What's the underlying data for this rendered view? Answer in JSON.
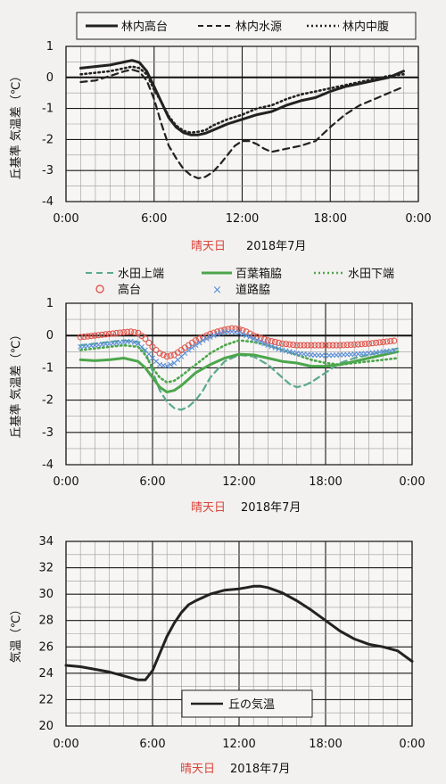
{
  "charts": [
    {
      "chart_data": {
        "type": "line",
        "xlabel_parts": [
          "晴天日",
          "2018年7月"
        ],
        "ylabel": "丘基準 気温差（℃）",
        "xlim": [
          0,
          24
        ],
        "ylim": [
          -4,
          1
        ],
        "xticks": [
          0,
          6,
          12,
          18,
          24
        ],
        "xtick_labels": [
          "0:00",
          "6:00",
          "12:00",
          "18:00",
          "0:00"
        ],
        "yticks": [
          1,
          0,
          -1,
          -2,
          -3,
          -4
        ],
        "ytick_labels": [
          "1",
          "0",
          "-1",
          "-2",
          "-3",
          "-4"
        ],
        "zero_line": true,
        "legend_position": "top",
        "series": [
          {
            "name": "林内高台",
            "style": "solid",
            "color": "#222222",
            "x": [
              1,
              2,
              3,
              4,
              4.5,
              5,
              5.5,
              6,
              6.5,
              7,
              7.5,
              8,
              8.5,
              9,
              9.5,
              10,
              11,
              12,
              13,
              14,
              15,
              16,
              17,
              18,
              19,
              20,
              21,
              22,
              23
            ],
            "y": [
              0.3,
              0.35,
              0.4,
              0.5,
              0.55,
              0.48,
              0.2,
              -0.3,
              -0.8,
              -1.3,
              -1.6,
              -1.78,
              -1.85,
              -1.85,
              -1.8,
              -1.7,
              -1.5,
              -1.35,
              -1.2,
              -1.1,
              -0.9,
              -0.75,
              -0.65,
              -0.45,
              -0.3,
              -0.2,
              -0.1,
              0.0,
              0.2
            ]
          },
          {
            "name": "林内水源",
            "style": "dashed",
            "color": "#222222",
            "x": [
              1,
              2,
              3,
              4,
              4.5,
              5,
              5.5,
              6,
              6.5,
              7,
              7.5,
              8,
              8.5,
              9,
              9.5,
              10,
              10.5,
              11,
              11.5,
              12,
              12.5,
              13,
              13.5,
              14,
              15,
              16,
              17,
              18,
              19,
              20,
              21,
              22,
              23
            ],
            "y": [
              -0.15,
              -0.1,
              0.05,
              0.2,
              0.25,
              0.18,
              -0.1,
              -0.7,
              -1.5,
              -2.2,
              -2.6,
              -2.95,
              -3.15,
              -3.25,
              -3.2,
              -3.05,
              -2.8,
              -2.5,
              -2.2,
              -2.05,
              -2.05,
              -2.15,
              -2.3,
              -2.4,
              -2.3,
              -2.2,
              -2.05,
              -1.6,
              -1.2,
              -0.9,
              -0.7,
              -0.5,
              -0.3
            ]
          },
          {
            "name": "林内中腹",
            "style": "dotted",
            "color": "#222222",
            "x": [
              1,
              2,
              3,
              4,
              4.5,
              5,
              5.5,
              6,
              6.5,
              7,
              7.5,
              8,
              8.5,
              9,
              9.5,
              10,
              11,
              12,
              13,
              14,
              15,
              16,
              17,
              18,
              19,
              20,
              21,
              22,
              23
            ],
            "y": [
              0.1,
              0.15,
              0.2,
              0.3,
              0.35,
              0.3,
              0.1,
              -0.4,
              -0.8,
              -1.25,
              -1.55,
              -1.72,
              -1.78,
              -1.75,
              -1.7,
              -1.55,
              -1.35,
              -1.2,
              -1.0,
              -0.9,
              -0.7,
              -0.55,
              -0.45,
              -0.35,
              -0.25,
              -0.15,
              -0.05,
              0.05,
              0.1
            ]
          }
        ]
      }
    },
    {
      "chart_data": {
        "type": "line",
        "xlabel_parts": [
          "晴天日",
          "2018年7月"
        ],
        "ylabel": "丘基準 気温差（℃）",
        "xlim": [
          0,
          24
        ],
        "ylim": [
          -4,
          1
        ],
        "xticks": [
          0,
          6,
          12,
          18,
          24
        ],
        "xtick_labels": [
          "0:00",
          "6:00",
          "12:00",
          "18:00",
          "0:00"
        ],
        "yticks": [
          1,
          0,
          -1,
          -2,
          -3,
          -4
        ],
        "ytick_labels": [
          "1",
          "0",
          "-1",
          "-2",
          "-3",
          "-4"
        ],
        "zero_line": true,
        "legend_position": "top",
        "series": [
          {
            "name": "水田上端",
            "style": "dashed",
            "color": "#5ba98f",
            "x": [
              1,
              2,
              3,
              4,
              5,
              5.5,
              6,
              6.5,
              7,
              7.5,
              8,
              8.5,
              9,
              9.5,
              10,
              11,
              12,
              13,
              14,
              15,
              15.5,
              16,
              16.5,
              17,
              18,
              19,
              20,
              21,
              22,
              23
            ],
            "y": [
              -0.3,
              -0.25,
              -0.2,
              -0.15,
              -0.2,
              -0.5,
              -1.1,
              -1.7,
              -2.05,
              -2.25,
              -2.3,
              -2.2,
              -2.0,
              -1.7,
              -1.3,
              -0.8,
              -0.6,
              -0.65,
              -0.9,
              -1.3,
              -1.5,
              -1.6,
              -1.55,
              -1.45,
              -1.15,
              -0.85,
              -0.7,
              -0.6,
              -0.5,
              -0.4
            ]
          },
          {
            "name": "百葉箱脇",
            "style": "solid",
            "color": "#4ca64c",
            "x": [
              1,
              2,
              3,
              4,
              5,
              5.5,
              6,
              6.5,
              7,
              7.5,
              8,
              8.5,
              9,
              10,
              11,
              12,
              13,
              14,
              15,
              16,
              17,
              18,
              19,
              20,
              21,
              22,
              23
            ],
            "y": [
              -0.75,
              -0.78,
              -0.75,
              -0.7,
              -0.8,
              -1.0,
              -1.3,
              -1.6,
              -1.75,
              -1.7,
              -1.55,
              -1.35,
              -1.15,
              -0.9,
              -0.7,
              -0.58,
              -0.6,
              -0.7,
              -0.8,
              -0.85,
              -0.95,
              -0.95,
              -0.9,
              -0.8,
              -0.7,
              -0.6,
              -0.5
            ]
          },
          {
            "name": "水田下端",
            "style": "dotted",
            "color": "#4ca64c",
            "x": [
              1,
              2,
              3,
              4,
              5,
              5.5,
              6,
              6.5,
              7,
              7.5,
              8,
              9,
              10,
              11,
              12,
              13,
              14,
              15,
              16,
              17,
              18,
              19,
              20,
              21,
              22,
              23
            ],
            "y": [
              -0.45,
              -0.4,
              -0.35,
              -0.3,
              -0.35,
              -0.6,
              -1.0,
              -1.3,
              -1.45,
              -1.4,
              -1.25,
              -0.9,
              -0.55,
              -0.3,
              -0.15,
              -0.2,
              -0.3,
              -0.45,
              -0.6,
              -0.75,
              -0.85,
              -0.9,
              -0.85,
              -0.8,
              -0.75,
              -0.7
            ]
          },
          {
            "name": "高台",
            "style": "circle-markers",
            "color": "#e0574e",
            "x": [
              1,
              2,
              3,
              4,
              4.5,
              5,
              5.5,
              6,
              6.5,
              7,
              7.5,
              8,
              8.5,
              9,
              9.5,
              10,
              10.5,
              11,
              11.5,
              12,
              12.5,
              13,
              14,
              15,
              16,
              17,
              18,
              19,
              20,
              21,
              22,
              23
            ],
            "y": [
              -0.05,
              0.0,
              0.05,
              0.1,
              0.12,
              0.08,
              -0.1,
              -0.35,
              -0.55,
              -0.65,
              -0.6,
              -0.45,
              -0.3,
              -0.15,
              -0.05,
              0.05,
              0.12,
              0.18,
              0.22,
              0.2,
              0.12,
              0.0,
              -0.15,
              -0.25,
              -0.3,
              -0.3,
              -0.3,
              -0.3,
              -0.28,
              -0.25,
              -0.2,
              -0.15
            ]
          },
          {
            "name": "道路脇",
            "style": "x-markers",
            "color": "#5b8fd8",
            "x": [
              1,
              2,
              3,
              4,
              4.5,
              5,
              5.5,
              6,
              6.5,
              7,
              7.5,
              8,
              8.5,
              9,
              9.5,
              10,
              10.5,
              11,
              11.5,
              12,
              12.5,
              13,
              14,
              15,
              16,
              17,
              18,
              19,
              20,
              21,
              22,
              23
            ],
            "y": [
              -0.35,
              -0.3,
              -0.25,
              -0.2,
              -0.18,
              -0.25,
              -0.45,
              -0.7,
              -0.9,
              -0.95,
              -0.85,
              -0.65,
              -0.45,
              -0.3,
              -0.15,
              -0.05,
              0.05,
              0.1,
              0.12,
              0.08,
              0.0,
              -0.1,
              -0.3,
              -0.45,
              -0.55,
              -0.6,
              -0.62,
              -0.6,
              -0.58,
              -0.55,
              -0.5,
              -0.45
            ]
          }
        ]
      }
    },
    {
      "chart_data": {
        "type": "line",
        "xlabel_parts": [
          "晴天日",
          "2018年7月"
        ],
        "ylabel": "気温（℃）",
        "xlim": [
          0,
          24
        ],
        "ylim": [
          20,
          34
        ],
        "xticks": [
          0,
          6,
          12,
          18,
          24
        ],
        "xtick_labels": [
          "0:00",
          "6:00",
          "12:00",
          "18:00",
          "0:00"
        ],
        "yticks": [
          34,
          32,
          30,
          28,
          26,
          24,
          22,
          20
        ],
        "ytick_labels": [
          "34",
          "32",
          "30",
          "28",
          "26",
          "24",
          "22",
          "20"
        ],
        "zero_line": false,
        "legend_position": "bottom-center",
        "series": [
          {
            "name": "丘の気温",
            "style": "solid",
            "color": "#222222",
            "x": [
              0,
              1,
              2,
              3,
              4,
              5,
              5.5,
              6,
              6.5,
              7,
              7.5,
              8,
              8.5,
              9,
              10,
              11,
              12,
              12.5,
              13,
              13.5,
              14,
              14.5,
              15,
              16,
              17,
              18,
              19,
              20,
              21,
              22,
              23,
              24
            ],
            "y": [
              24.6,
              24.5,
              24.3,
              24.1,
              23.8,
              23.5,
              23.5,
              24.2,
              25.5,
              26.8,
              27.8,
              28.6,
              29.2,
              29.5,
              30.0,
              30.3,
              30.4,
              30.5,
              30.6,
              30.6,
              30.5,
              30.3,
              30.1,
              29.5,
              28.8,
              28.0,
              27.2,
              26.6,
              26.2,
              26.0,
              25.7,
              24.9
            ]
          }
        ]
      }
    }
  ]
}
